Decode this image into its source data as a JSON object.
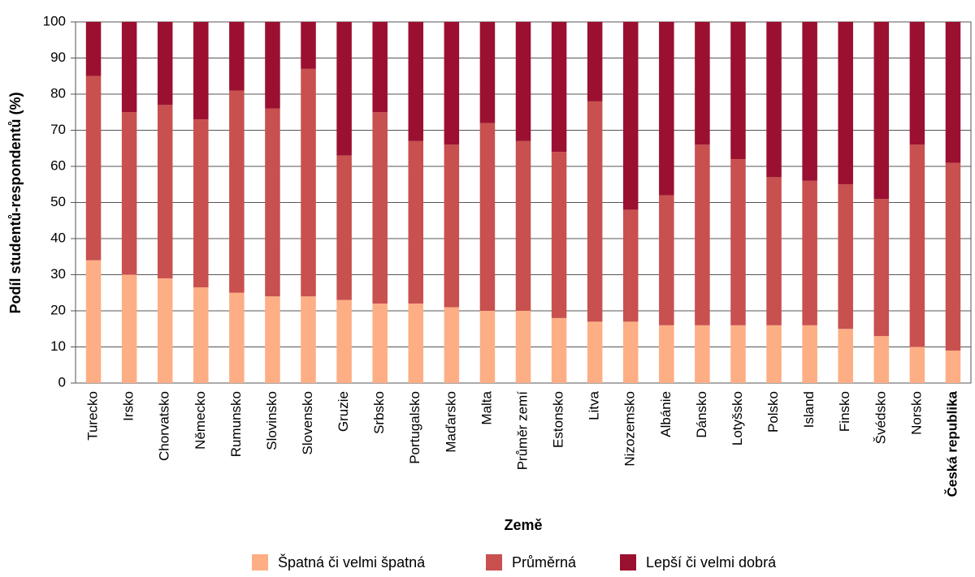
{
  "chart_data": {
    "type": "stacked_bar",
    "x_label": "Země",
    "y_label": "Podíl studentů-respondentů (%)",
    "categories": [
      "Turecko",
      "Irsko",
      "Chorvatsko",
      "Německo",
      "Rumunsko",
      "Slovinsko",
      "Slovensko",
      "Gruzie",
      "Srbsko",
      "Portugalsko",
      "Maďarsko",
      "Malta",
      "Průměr zemí",
      "Estonsko",
      "Litva",
      "Nizozemsko",
      "Albánie",
      "Dánsko",
      "Lotyšsko",
      "Polsko",
      "Island",
      "Finsko",
      "Švédsko",
      "Norsko",
      "Česká republika"
    ],
    "highlight": "Česká republika",
    "series": [
      {
        "name": "Špatná či velmi špatná",
        "color": "#fdae85",
        "values": [
          34,
          30,
          29,
          26.5,
          25,
          24,
          24,
          23,
          22,
          22,
          21,
          20,
          20,
          18,
          17,
          17,
          16,
          16,
          16,
          16,
          16,
          15,
          13,
          10,
          9
        ]
      },
      {
        "name": "Průměrná",
        "color": "#c8504f",
        "values": [
          51,
          45,
          48,
          46.5,
          56,
          52,
          63,
          40,
          53,
          45,
          45,
          52,
          47,
          46,
          61,
          31,
          36,
          50,
          46,
          41,
          40,
          40,
          38,
          56,
          52
        ]
      },
      {
        "name": "Lepší či velmi dobrá",
        "color": "#9b1030",
        "values": [
          15,
          25,
          23,
          27,
          19,
          24,
          13,
          37,
          25,
          33,
          34,
          28,
          33,
          36,
          22,
          52,
          48,
          34,
          38,
          43,
          44,
          45,
          49,
          34,
          39
        ]
      }
    ],
    "ylim": [
      0,
      100
    ],
    "yticks": [
      0,
      10,
      20,
      30,
      40,
      50,
      60,
      70,
      80,
      90,
      100
    ],
    "grid": true
  }
}
